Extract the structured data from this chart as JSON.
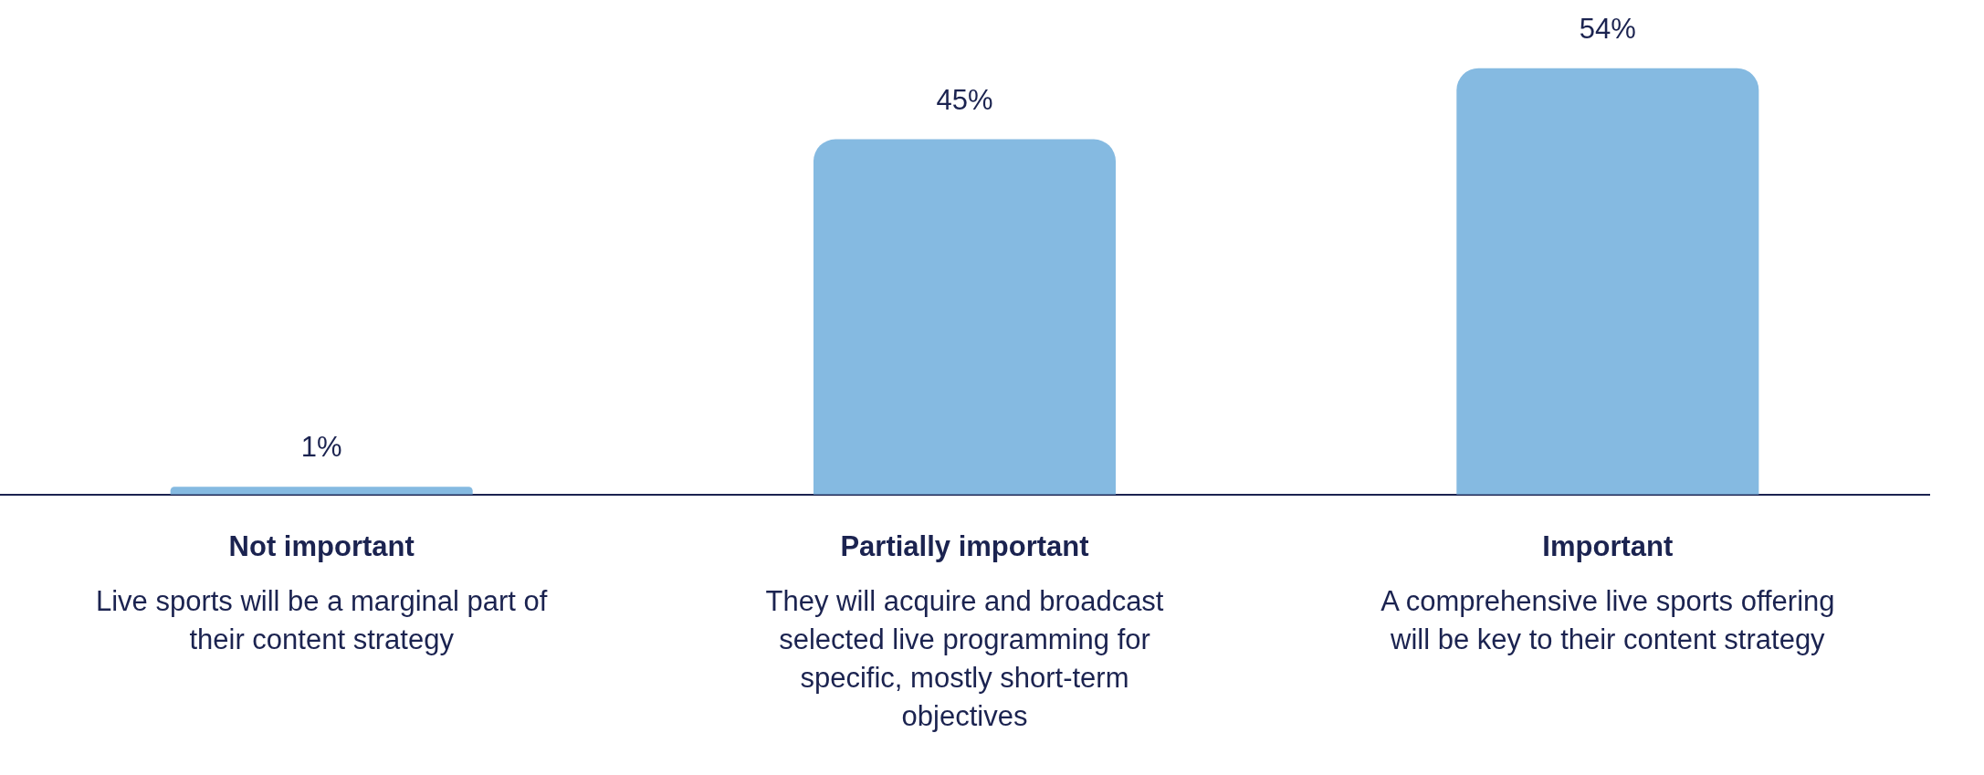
{
  "chart_data": {
    "type": "bar",
    "categories": [
      "Not important",
      "Partially important",
      "Important"
    ],
    "values": [
      1,
      45,
      54
    ],
    "color": "#85bae1",
    "value_labels": [
      "1%",
      "45%",
      "54%"
    ],
    "annotations": [
      "Live sports will be a marginal part of their content strategy",
      "They will acquire and broadcast selected live programming for specific, mostly short-term objectives",
      "A comprehensive live sports offering will be key to their content strategy"
    ],
    "grid": false,
    "legend": false
  }
}
